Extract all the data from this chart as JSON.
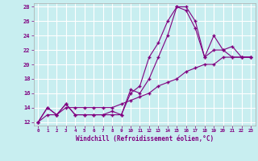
{
  "xlabel": "Windchill (Refroidissement éolien,°C)",
  "bg_color": "#c8eef0",
  "grid_color": "#b0d8dc",
  "line_color": "#800080",
  "xlim": [
    -0.5,
    23.5
  ],
  "ylim": [
    11.5,
    28.5
  ],
  "xticks": [
    0,
    1,
    2,
    3,
    4,
    5,
    6,
    7,
    8,
    9,
    10,
    11,
    12,
    13,
    14,
    15,
    16,
    17,
    18,
    19,
    20,
    21,
    22,
    23
  ],
  "yticks": [
    12,
    14,
    16,
    18,
    20,
    22,
    24,
    26,
    28
  ],
  "line1_x": [
    0,
    1,
    2,
    3,
    4,
    5,
    6,
    7,
    8,
    9,
    10,
    11,
    12,
    13,
    14,
    15,
    16,
    17,
    18,
    19,
    20,
    21,
    22,
    23
  ],
  "line1_y": [
    12,
    14,
    13,
    14.5,
    13,
    13,
    13,
    13,
    13,
    13,
    16.5,
    16,
    18,
    21,
    24,
    28,
    27.5,
    25,
    21,
    22,
    22,
    21,
    21,
    21
  ],
  "line2_x": [
    0,
    1,
    2,
    3,
    4,
    5,
    6,
    7,
    8,
    9,
    10,
    11,
    12,
    13,
    14,
    15,
    16,
    17,
    18,
    19,
    20,
    21,
    22,
    23
  ],
  "line2_y": [
    12,
    14,
    13,
    14.5,
    13,
    13,
    13,
    13,
    13.5,
    13,
    16,
    17,
    21,
    23,
    26,
    28,
    28,
    26,
    21,
    24,
    22,
    22.5,
    21,
    21
  ],
  "line3_x": [
    0,
    1,
    2,
    3,
    4,
    5,
    6,
    7,
    8,
    9,
    10,
    11,
    12,
    13,
    14,
    15,
    16,
    17,
    18,
    19,
    20,
    21,
    22,
    23
  ],
  "line3_y": [
    12,
    13,
    13,
    14,
    14,
    14,
    14,
    14,
    14,
    14.5,
    15,
    15.5,
    16,
    17,
    17.5,
    18,
    19,
    19.5,
    20,
    20,
    21,
    21,
    21,
    21
  ]
}
